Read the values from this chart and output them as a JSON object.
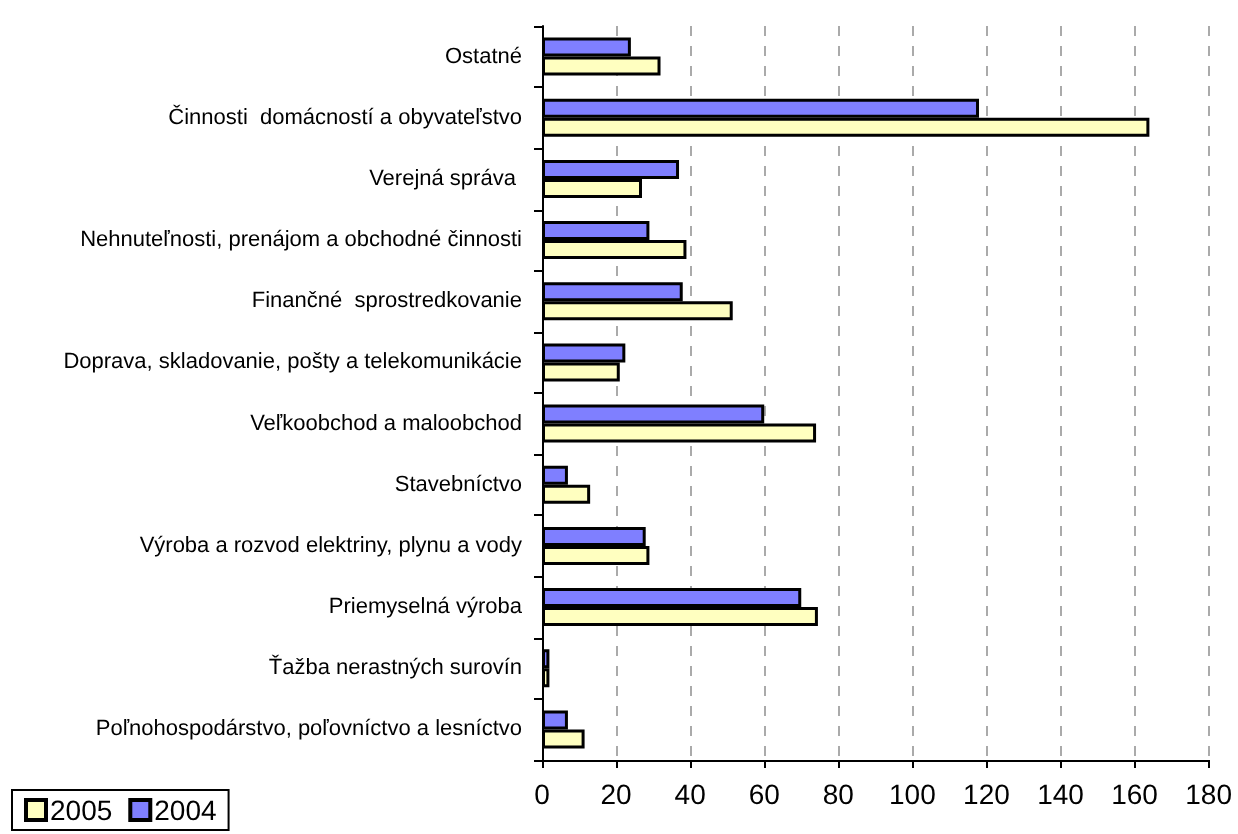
{
  "chart_data": {
    "type": "bar",
    "orientation": "horizontal",
    "categories": [
      "Ostatné",
      "Činnosti  domácností a obyvateľstvo",
      "Verejná správa ",
      "Nehnuteľnosti, prenájom a obchodné činnosti",
      "Finančné  sprostredkovanie",
      "Doprava, skladovanie, pošty a telekomunikácie",
      "Veľkoobchod a maloobchod",
      "Stavebníctvo",
      "Výroba a rozvod elektriny, plynu a vody",
      "Priemyselná výroba",
      "Ťažba nerastných surovín",
      "Poľnohospodárstvo, poľovníctvo a lesníctvo"
    ],
    "series": [
      {
        "name": "2005",
        "color": "#ffffc0",
        "values": [
          32,
          164,
          27,
          39,
          51.5,
          21,
          74,
          13,
          29,
          74.5,
          2,
          11.5
        ]
      },
      {
        "name": "2004",
        "color": "#7f7fff",
        "values": [
          24,
          118,
          37,
          29,
          38,
          22.5,
          60,
          7,
          28,
          70,
          2,
          7
        ]
      }
    ],
    "xlim": [
      0,
      180
    ],
    "xticks": [
      0,
      20,
      40,
      60,
      80,
      100,
      120,
      140,
      160,
      180
    ],
    "grid": "x",
    "legend": "bottom left"
  }
}
